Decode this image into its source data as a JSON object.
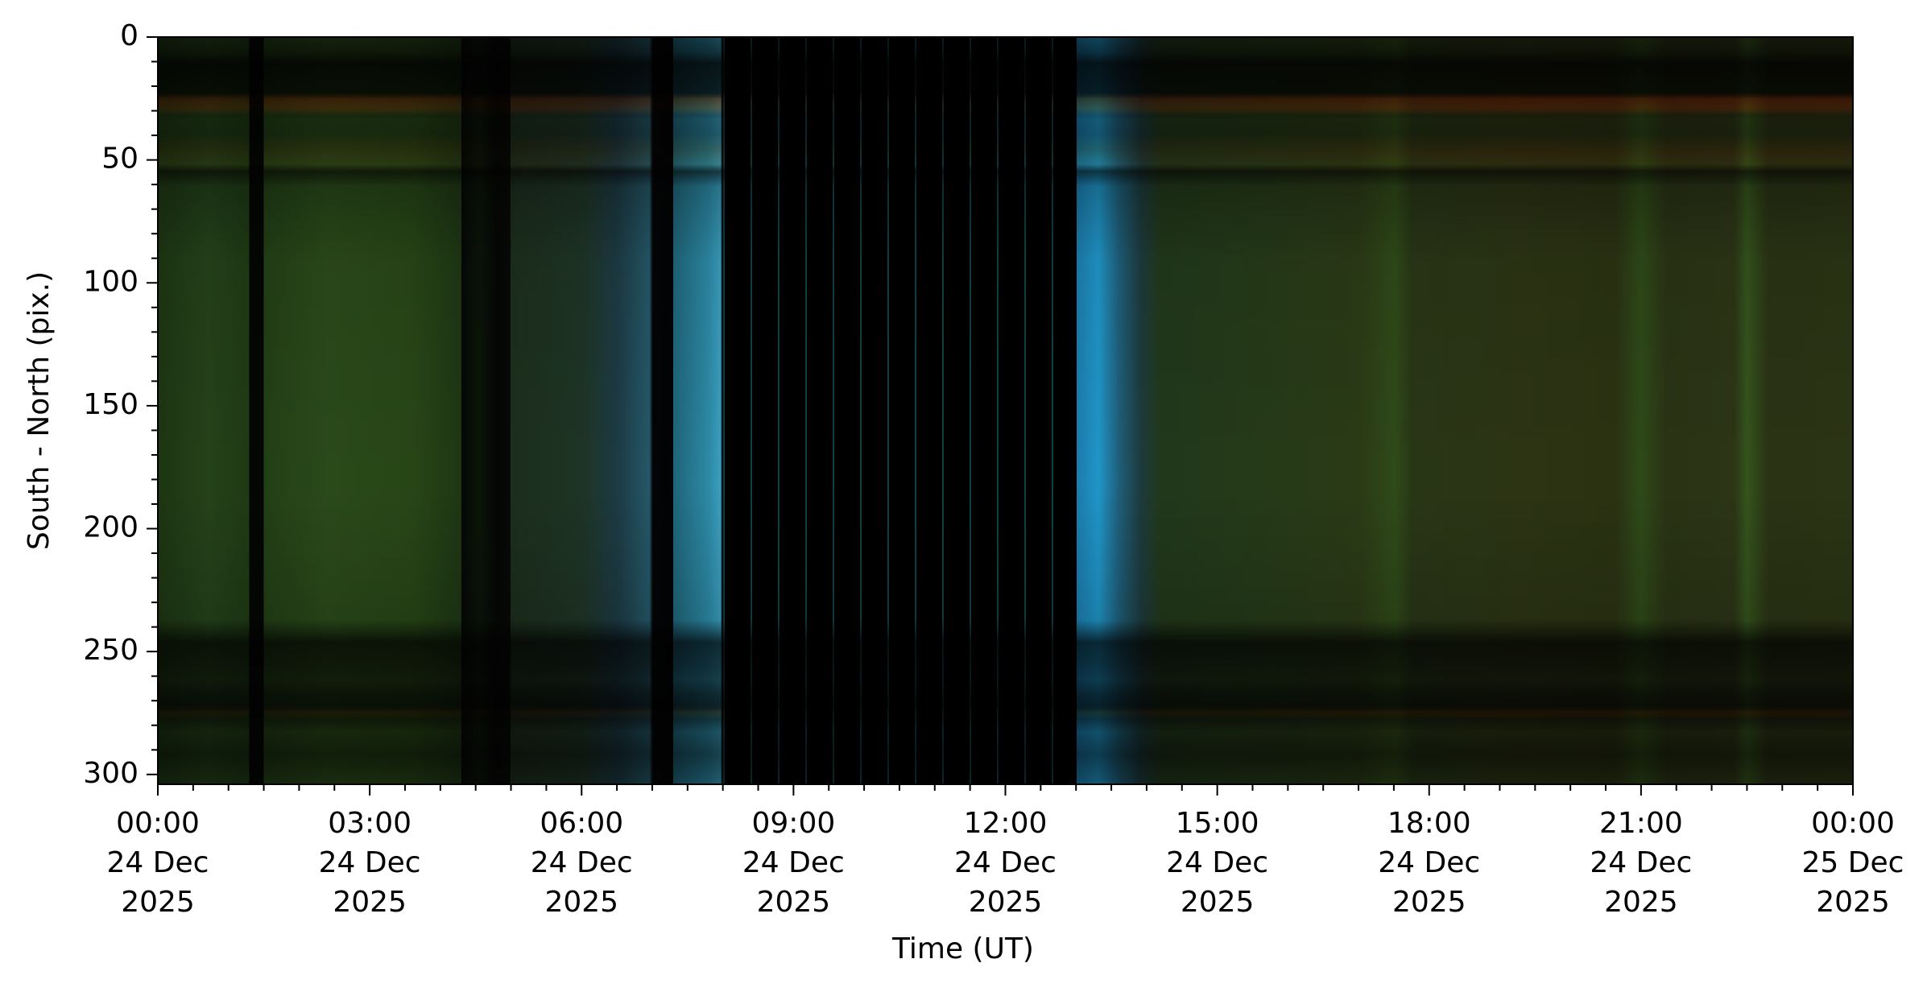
{
  "chart_data": {
    "type": "keogram",
    "xlabel": "Time (UT)",
    "ylabel": "South - North (pix.)",
    "xlim": [
      "2025-12-24T00:00",
      "2025-12-25T00:00"
    ],
    "ylim": [
      304,
      0
    ],
    "yticks": [
      0,
      50,
      100,
      150,
      200,
      250,
      300
    ],
    "yminorticks": [
      10,
      20,
      30,
      40,
      60,
      70,
      80,
      90,
      110,
      120,
      130,
      140,
      160,
      170,
      180,
      190,
      210,
      220,
      230,
      240,
      260,
      270,
      280,
      290
    ],
    "xticks": [
      {
        "value": "2025-12-24T00:00",
        "label": [
          "00:00",
          "24 Dec",
          "2025"
        ]
      },
      {
        "value": "2025-12-24T03:00",
        "label": [
          "03:00",
          "24 Dec",
          "2025"
        ]
      },
      {
        "value": "2025-12-24T06:00",
        "label": [
          "06:00",
          "24 Dec",
          "2025"
        ]
      },
      {
        "value": "2025-12-24T09:00",
        "label": [
          "09:00",
          "24 Dec",
          "2025"
        ]
      },
      {
        "value": "2025-12-24T12:00",
        "label": [
          "12:00",
          "24 Dec",
          "2025"
        ]
      },
      {
        "value": "2025-12-24T15:00",
        "label": [
          "15:00",
          "24 Dec",
          "2025"
        ]
      },
      {
        "value": "2025-12-24T18:00",
        "label": [
          "18:00",
          "24 Dec",
          "2025"
        ]
      },
      {
        "value": "2025-12-24T21:00",
        "label": [
          "21:00",
          "24 Dec",
          "2025"
        ]
      },
      {
        "value": "2025-12-25T00:00",
        "label": [
          "00:00",
          "25 Dec",
          "2025"
        ]
      }
    ],
    "xminorticks": [
      "2025-12-24T00:30",
      "2025-12-24T01:00",
      "2025-12-24T01:30",
      "2025-12-24T02:00",
      "2025-12-24T02:30",
      "2025-12-24T03:30",
      "2025-12-24T04:00",
      "2025-12-24T04:30",
      "2025-12-24T05:00",
      "2025-12-24T05:30",
      "2025-12-24T06:30",
      "2025-12-24T07:00",
      "2025-12-24T07:30",
      "2025-12-24T08:00",
      "2025-12-24T08:30",
      "2025-12-24T09:30",
      "2025-12-24T10:00",
      "2025-12-24T10:30",
      "2025-12-24T11:00",
      "2025-12-24T11:30",
      "2025-12-24T12:30",
      "2025-12-24T13:00",
      "2025-12-24T13:30",
      "2025-12-24T14:00",
      "2025-12-24T14:30",
      "2025-12-24T15:30",
      "2025-12-24T16:00",
      "2025-12-24T16:30",
      "2025-12-24T17:00",
      "2025-12-24T17:30",
      "2025-12-24T18:30",
      "2025-12-24T19:00",
      "2025-12-24T19:30",
      "2025-12-24T20:00",
      "2025-12-24T20:30",
      "2025-12-24T21:30",
      "2025-12-24T22:00",
      "2025-12-24T22:30",
      "2025-12-24T23:00",
      "2025-12-24T23:30"
    ]
  }
}
